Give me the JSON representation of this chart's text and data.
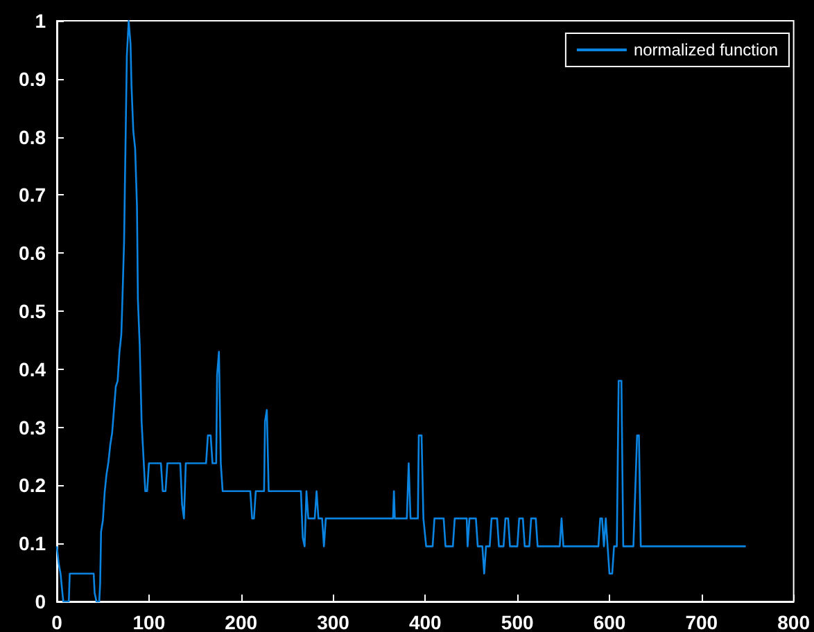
{
  "chart_data": {
    "type": "line",
    "series": [
      {
        "name": "normalized function",
        "color": "#0a84e0",
        "x": [
          0,
          2,
          4,
          6,
          7,
          13,
          14,
          40,
          41,
          43,
          46,
          47,
          48,
          50,
          52,
          54,
          56,
          58,
          60,
          62,
          64,
          66,
          68,
          70,
          71,
          73,
          74,
          76,
          78,
          80,
          81,
          83,
          85,
          87,
          88,
          89,
          90,
          92,
          94,
          96,
          98,
          100,
          113,
          115,
          118,
          120,
          134,
          136,
          138,
          140,
          162,
          164,
          167,
          169,
          173,
          174,
          176,
          178,
          180,
          210,
          212,
          214,
          216,
          225,
          226,
          228,
          230,
          265,
          267,
          269,
          271,
          273,
          280,
          282,
          284,
          288,
          290,
          292,
          365,
          366,
          367,
          380,
          382,
          384,
          392,
          393,
          396,
          398,
          401,
          408,
          410,
          420,
          422,
          430,
          432,
          445,
          446,
          448,
          455,
          457,
          462,
          464,
          466,
          470,
          472,
          478,
          480,
          485,
          487,
          490,
          492,
          500,
          502,
          506,
          508,
          513,
          515,
          520,
          522,
          546,
          548,
          550,
          588,
          590,
          592,
          594,
          596,
          598,
          600,
          603,
          605,
          608,
          610,
          613,
          615,
          626,
          628,
          630,
          632,
          634,
          748
        ],
        "values": [
          0.095,
          0.065,
          0.048,
          0.015,
          0,
          0,
          0.048,
          0.048,
          0.015,
          0,
          0,
          0.03,
          0.12,
          0.14,
          0.19,
          0.22,
          0.24,
          0.27,
          0.29,
          0.33,
          0.37,
          0.38,
          0.43,
          0.46,
          0.51,
          0.62,
          0.73,
          0.94,
          1.0,
          0.96,
          0.89,
          0.81,
          0.78,
          0.68,
          0.52,
          0.48,
          0.44,
          0.31,
          0.25,
          0.19,
          0.19,
          0.238,
          0.238,
          0.19,
          0.19,
          0.238,
          0.238,
          0.167,
          0.143,
          0.238,
          0.238,
          0.286,
          0.286,
          0.238,
          0.238,
          0.39,
          0.43,
          0.238,
          0.19,
          0.19,
          0.143,
          0.143,
          0.19,
          0.19,
          0.31,
          0.33,
          0.19,
          0.19,
          0.11,
          0.095,
          0.19,
          0.143,
          0.143,
          0.19,
          0.143,
          0.143,
          0.095,
          0.143,
          0.143,
          0.19,
          0.143,
          0.143,
          0.238,
          0.143,
          0.143,
          0.286,
          0.286,
          0.143,
          0.095,
          0.095,
          0.143,
          0.143,
          0.095,
          0.095,
          0.143,
          0.143,
          0.095,
          0.143,
          0.143,
          0.095,
          0.095,
          0.048,
          0.095,
          0.095,
          0.143,
          0.143,
          0.095,
          0.095,
          0.143,
          0.143,
          0.095,
          0.095,
          0.143,
          0.143,
          0.095,
          0.095,
          0.143,
          0.143,
          0.095,
          0.095,
          0.143,
          0.095,
          0.095,
          0.143,
          0.143,
          0.095,
          0.143,
          0.095,
          0.048,
          0.048,
          0.095,
          0.095,
          0.38,
          0.38,
          0.095,
          0.095,
          0.19,
          0.286,
          0.286,
          0.095,
          0.095
        ]
      }
    ],
    "xlim": [
      0,
      800
    ],
    "xticks": [
      0,
      100,
      200,
      300,
      400,
      500,
      600,
      700,
      800
    ],
    "ylim": [
      0,
      1
    ],
    "yticks": [
      0,
      0.1,
      0.2,
      0.3,
      0.4,
      0.5,
      0.6,
      0.7,
      0.8,
      0.9,
      1
    ],
    "grid": false,
    "legend": "top right",
    "marker": "none",
    "line_style": "solid"
  }
}
